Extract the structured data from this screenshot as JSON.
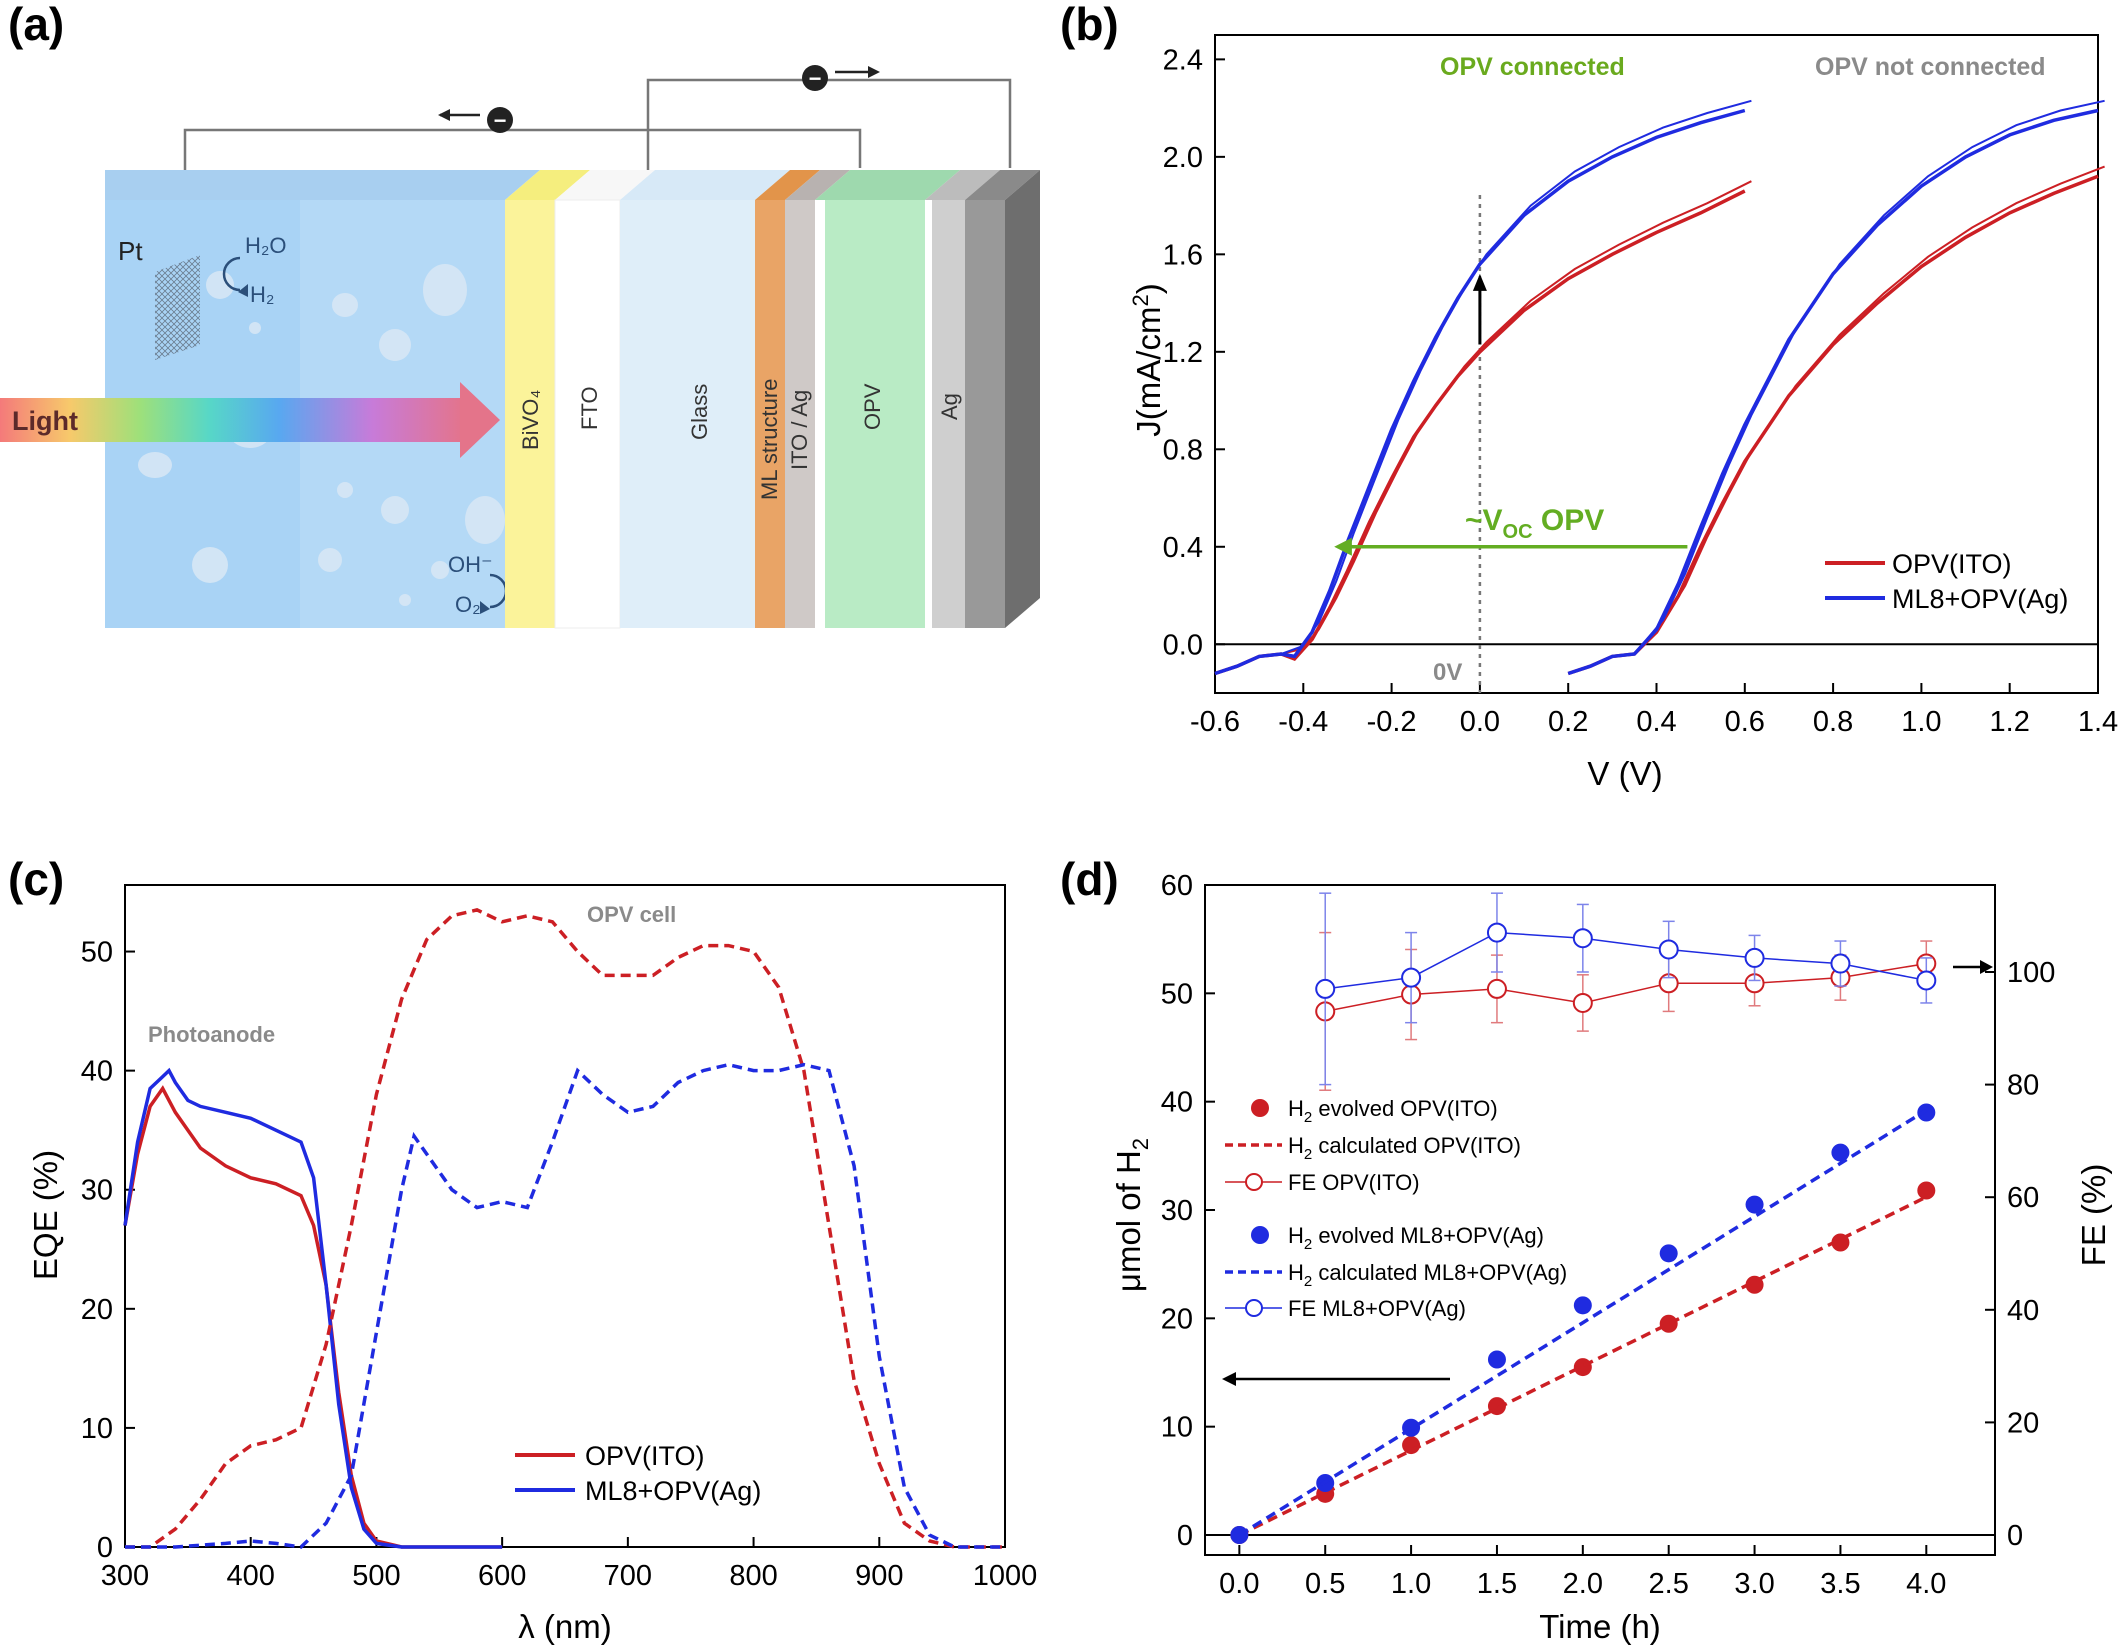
{
  "panel_labels": {
    "a": "(a)",
    "b": "(b)",
    "c": "(c)",
    "d": "(d)"
  },
  "diagram": {
    "light_label": "Light",
    "pt_label": "Pt",
    "h2o": "H₂O",
    "h2": "H₂",
    "oh": "OH⁻",
    "o2": "O₂",
    "electron": "−",
    "layers": [
      "BiVO₄",
      "FTO",
      "Glass",
      "ML structure",
      "ITO / Ag",
      "OPV",
      "Ag"
    ]
  },
  "panel_b": {
    "annotations": {
      "connected": "OPV connected",
      "not_connected": "OPV not connected",
      "voc": "~V",
      "voc_sub": "OC",
      "voc_tail": " OPV",
      "zero": "0V"
    },
    "colors": {
      "connected_text": "#6aaa1e",
      "not_connected_text": "#8a8a8a",
      "red": "#cc1f24",
      "blue": "#1f2be0",
      "green_arrow": "#63ad22"
    }
  },
  "panel_c": {
    "annotations": {
      "photoanode": "Photoanode",
      "opv_cell": "OPV cell"
    }
  },
  "panel_d": {
    "legend": {
      "r1": "H",
      "r1_sub": "2",
      "r1_tail": " evolved OPV(ITO)",
      "r2": "H",
      "r2_sub": "2",
      "r2_tail": " calculated OPV(ITO)",
      "r3": "FE OPV(ITO)",
      "b1": "H",
      "b1_sub": "2",
      "b1_tail": " evolved ML8+OPV(Ag)",
      "b2": "H",
      "b2_sub": "2",
      "b2_tail": " calculated ML8+OPV(Ag)",
      "b3": "FE ML8+OPV(Ag)"
    }
  },
  "chart_data": [
    {
      "panel": "b",
      "type": "line",
      "xlabel": "V (V)",
      "ylabel": "J(mA/cm²)",
      "ylabel_main": "J(mA/cm",
      "ylabel_sup": "2",
      "ylabel_close": ")",
      "xlim": [
        -0.6,
        1.4
      ],
      "ylim": [
        -0.2,
        2.5
      ],
      "xticks": [
        "-0.6",
        "-0.4",
        "-0.2",
        "0.0",
        "0.2",
        "0.4",
        "0.6",
        "0.8",
        "1.0",
        "1.2",
        "1.4"
      ],
      "yticks": [
        "0.0",
        "0.4",
        "0.8",
        "1.2",
        "1.6",
        "2.0",
        "2.4"
      ],
      "legend": [
        "OPV(ITO)",
        "ML8+OPV(Ag)"
      ],
      "series": [
        {
          "name": "OPV(ITO)",
          "group": "connected",
          "color": "#cc1f24",
          "x": [
            -0.6,
            -0.55,
            -0.5,
            -0.45,
            -0.42,
            -0.38,
            -0.34,
            -0.3,
            -0.25,
            -0.2,
            -0.15,
            -0.1,
            -0.05,
            0.0,
            0.1,
            0.2,
            0.3,
            0.4,
            0.5,
            0.6
          ],
          "y": [
            -0.12,
            -0.09,
            -0.05,
            -0.04,
            -0.06,
            0.02,
            0.15,
            0.3,
            0.5,
            0.68,
            0.85,
            0.98,
            1.1,
            1.2,
            1.37,
            1.5,
            1.6,
            1.69,
            1.77,
            1.86
          ]
        },
        {
          "name": "ML8+OPV(Ag)",
          "group": "connected",
          "color": "#1f2be0",
          "x": [
            -0.6,
            -0.55,
            -0.5,
            -0.45,
            -0.42,
            -0.38,
            -0.34,
            -0.3,
            -0.25,
            -0.2,
            -0.15,
            -0.1,
            -0.05,
            0.0,
            0.1,
            0.2,
            0.3,
            0.4,
            0.5,
            0.6
          ],
          "y": [
            -0.12,
            -0.09,
            -0.05,
            -0.04,
            -0.05,
            0.05,
            0.22,
            0.42,
            0.65,
            0.88,
            1.08,
            1.26,
            1.42,
            1.56,
            1.76,
            1.9,
            2.0,
            2.08,
            2.14,
            2.19
          ]
        },
        {
          "name": "OPV(ITO)",
          "group": "not connected",
          "color": "#cc1f24",
          "x": [
            0.2,
            0.25,
            0.3,
            0.35,
            0.4,
            0.45,
            0.5,
            0.55,
            0.6,
            0.7,
            0.8,
            0.9,
            1.0,
            1.1,
            1.2,
            1.3,
            1.4
          ],
          "y": [
            -0.12,
            -0.09,
            -0.05,
            -0.04,
            0.05,
            0.2,
            0.4,
            0.58,
            0.75,
            1.02,
            1.23,
            1.4,
            1.55,
            1.67,
            1.77,
            1.85,
            1.92
          ]
        },
        {
          "name": "ML8+OPV(Ag)",
          "group": "not connected",
          "color": "#1f2be0",
          "x": [
            0.2,
            0.25,
            0.3,
            0.35,
            0.4,
            0.45,
            0.5,
            0.55,
            0.6,
            0.7,
            0.8,
            0.9,
            1.0,
            1.1,
            1.2,
            1.3,
            1.4
          ],
          "y": [
            -0.12,
            -0.09,
            -0.05,
            -0.04,
            0.06,
            0.25,
            0.48,
            0.7,
            0.9,
            1.25,
            1.52,
            1.72,
            1.88,
            2.0,
            2.09,
            2.15,
            2.19
          ]
        }
      ]
    },
    {
      "panel": "c",
      "type": "line",
      "xlabel": "λ (nm)",
      "ylabel": "EQE (%)",
      "xlim": [
        300,
        1000
      ],
      "ylim": [
        0,
        55
      ],
      "xticks": [
        "300",
        "400",
        "500",
        "600",
        "700",
        "800",
        "900",
        "1000"
      ],
      "yticks": [
        "0",
        "10",
        "20",
        "30",
        "40",
        "50"
      ],
      "legend": [
        "OPV(ITO)",
        "ML8+OPV(Ag)"
      ],
      "series": [
        {
          "name": "OPV(ITO)",
          "style": "solid",
          "color": "#cc1f24",
          "x": [
            300,
            310,
            320,
            330,
            335,
            340,
            350,
            360,
            380,
            400,
            420,
            440,
            450,
            460,
            470,
            480,
            490,
            500,
            520,
            600
          ],
          "y": [
            27,
            33,
            37,
            38.5,
            37.5,
            36.5,
            35,
            33.5,
            32,
            31,
            30.5,
            29.5,
            27,
            22,
            13,
            6,
            2,
            0.5,
            0,
            0
          ]
        },
        {
          "name": "ML8+OPV(Ag)",
          "style": "solid",
          "color": "#1f2be0",
          "x": [
            300,
            310,
            320,
            330,
            335,
            340,
            350,
            360,
            380,
            400,
            420,
            440,
            450,
            460,
            470,
            480,
            490,
            500,
            520,
            600
          ],
          "y": [
            27,
            34,
            38.5,
            39.5,
            40,
            39,
            37.5,
            37,
            36.5,
            36,
            35,
            34,
            31,
            22,
            12,
            5,
            1.5,
            0.3,
            0,
            0
          ]
        },
        {
          "name": "OPV(ITO)",
          "style": "dashed",
          "color": "#cc1f24",
          "x": [
            300,
            320,
            340,
            360,
            380,
            400,
            420,
            440,
            460,
            480,
            500,
            520,
            540,
            560,
            580,
            600,
            620,
            640,
            660,
            680,
            700,
            720,
            740,
            760,
            780,
            800,
            820,
            840,
            860,
            880,
            900,
            920,
            940,
            960,
            980,
            1000
          ],
          "y": [
            0,
            0,
            1.5,
            4,
            7,
            8.5,
            9,
            10,
            17,
            27,
            38,
            46,
            51,
            53,
            53.5,
            52.5,
            53,
            52.5,
            50,
            48,
            48,
            48,
            49.5,
            50.5,
            50.5,
            50,
            47,
            40,
            27,
            14,
            7,
            2,
            0.5,
            0,
            0,
            0
          ]
        },
        {
          "name": "ML8+OPV(Ag)",
          "style": "dashed",
          "color": "#1f2be0",
          "x": [
            300,
            340,
            380,
            400,
            420,
            440,
            460,
            480,
            500,
            520,
            530,
            540,
            560,
            580,
            600,
            620,
            640,
            660,
            680,
            700,
            720,
            740,
            760,
            780,
            800,
            820,
            840,
            860,
            880,
            900,
            920,
            940,
            960,
            980,
            1000
          ],
          "y": [
            0,
            0,
            0.3,
            0.5,
            0.3,
            0,
            2,
            6,
            18,
            30,
            34.5,
            33,
            30,
            28.5,
            29,
            28.5,
            34,
            40,
            38,
            36.5,
            37,
            39,
            40,
            40.5,
            40,
            40,
            40.5,
            40,
            32,
            16,
            5,
            1,
            0,
            0,
            0
          ]
        }
      ]
    },
    {
      "panel": "d",
      "type": "scatter",
      "xlabel": "Time (h)",
      "ylabel": "μmol of H₂",
      "ylabel_main": "μmol of H",
      "ylabel_sub": "2",
      "y2label": "FE (%)",
      "xlim": [
        -0.2,
        4.4
      ],
      "ylim": [
        0,
        60
      ],
      "y2lim": [
        0,
        116
      ],
      "xticks": [
        "0.0",
        "0.5",
        "1.0",
        "1.5",
        "2.0",
        "2.5",
        "3.0",
        "3.5",
        "4.0"
      ],
      "yticks": [
        "0",
        "10",
        "20",
        "30",
        "40",
        "50",
        "60"
      ],
      "y2ticks": [
        "0",
        "20",
        "40",
        "60",
        "80",
        "100"
      ],
      "x": [
        0,
        0.5,
        1.0,
        1.5,
        2.0,
        2.5,
        3.0,
        3.5,
        4.0
      ],
      "series": [
        {
          "name": "H2 evolved OPV(ITO)",
          "kind": "filled",
          "color": "#cc1f24",
          "axis": "left",
          "values": [
            0,
            3.8,
            8.3,
            11.9,
            15.5,
            19.5,
            23.1,
            27.0,
            31.8
          ]
        },
        {
          "name": "H2 calculated OPV(ITO)",
          "kind": "dashed",
          "color": "#cc1f24",
          "axis": "left",
          "values": [
            0,
            3.9,
            7.8,
            11.7,
            15.6,
            19.5,
            23.4,
            27.3,
            31.2
          ]
        },
        {
          "name": "H2 evolved ML8+OPV(Ag)",
          "kind": "filled",
          "color": "#1f2be0",
          "axis": "left",
          "values": [
            0,
            4.8,
            9.9,
            16.2,
            21.2,
            26.0,
            30.5,
            35.3,
            39.0
          ]
        },
        {
          "name": "H2 calculated ML8+OPV(Ag)",
          "kind": "dashed",
          "color": "#1f2be0",
          "axis": "left",
          "values": [
            0,
            4.9,
            9.8,
            14.7,
            19.6,
            24.5,
            29.4,
            34.3,
            39.2
          ]
        },
        {
          "name": "FE OPV(ITO)",
          "kind": "open",
          "color": "#cc1f24",
          "axis": "right",
          "values": [
            93,
            96,
            97,
            94.5,
            98,
            98,
            99,
            101.5
          ],
          "x": [
            0.5,
            1.0,
            1.5,
            2.0,
            2.5,
            3.0,
            3.5,
            4.0
          ],
          "err": [
            14,
            8,
            6,
            5,
            5,
            4,
            4,
            4
          ]
        },
        {
          "name": "FE ML8+OPV(Ag)",
          "kind": "open",
          "color": "#1f2be0",
          "axis": "right",
          "values": [
            97,
            99,
            107,
            106,
            104,
            102.5,
            101.5,
            98.5
          ],
          "x": [
            0.5,
            1.0,
            1.5,
            2.0,
            2.5,
            3.0,
            3.5,
            4.0
          ],
          "err": [
            17,
            8,
            7,
            6,
            5,
            4,
            4,
            4
          ]
        }
      ]
    }
  ]
}
